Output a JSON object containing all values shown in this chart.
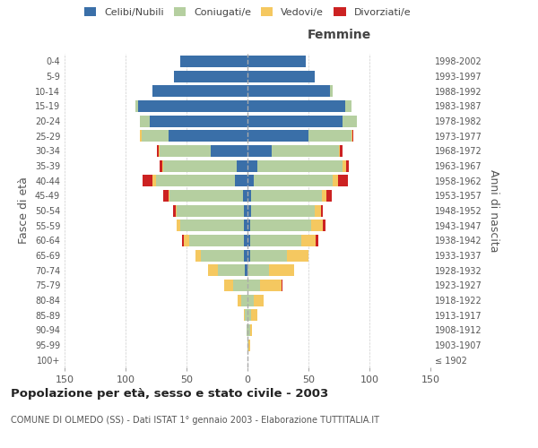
{
  "age_groups": [
    "100+",
    "95-99",
    "90-94",
    "85-89",
    "80-84",
    "75-79",
    "70-74",
    "65-69",
    "60-64",
    "55-59",
    "50-54",
    "45-49",
    "40-44",
    "35-39",
    "30-34",
    "25-29",
    "20-24",
    "15-19",
    "10-14",
    "5-9",
    "0-4"
  ],
  "birth_years": [
    "≤ 1902",
    "1903-1907",
    "1908-1912",
    "1913-1917",
    "1918-1922",
    "1923-1927",
    "1928-1932",
    "1933-1937",
    "1938-1942",
    "1943-1947",
    "1948-1952",
    "1953-1957",
    "1958-1962",
    "1963-1967",
    "1968-1972",
    "1973-1977",
    "1978-1982",
    "1983-1987",
    "1988-1992",
    "1993-1997",
    "1998-2002"
  ],
  "males": {
    "celibi": [
      0,
      0,
      0,
      0,
      0,
      0,
      2,
      3,
      3,
      3,
      3,
      4,
      10,
      9,
      30,
      65,
      80,
      90,
      78,
      60,
      55
    ],
    "coniugati": [
      0,
      0,
      1,
      2,
      5,
      12,
      22,
      35,
      45,
      52,
      55,
      60,
      65,
      60,
      42,
      22,
      8,
      2,
      0,
      0,
      0
    ],
    "vedovi": [
      0,
      0,
      0,
      1,
      3,
      7,
      8,
      5,
      4,
      3,
      1,
      1,
      3,
      1,
      1,
      1,
      0,
      0,
      0,
      0,
      0
    ],
    "divorziati": [
      0,
      0,
      0,
      0,
      0,
      0,
      0,
      0,
      2,
      0,
      2,
      4,
      8,
      2,
      1,
      0,
      0,
      0,
      0,
      0,
      0
    ]
  },
  "females": {
    "nubili": [
      0,
      0,
      0,
      0,
      0,
      0,
      0,
      2,
      2,
      2,
      3,
      3,
      5,
      8,
      20,
      50,
      78,
      80,
      68,
      55,
      48
    ],
    "coniugate": [
      0,
      1,
      2,
      3,
      5,
      10,
      18,
      30,
      42,
      50,
      52,
      58,
      65,
      70,
      55,
      35,
      12,
      5,
      2,
      0,
      0
    ],
    "vedove": [
      0,
      1,
      2,
      5,
      8,
      18,
      20,
      18,
      12,
      10,
      5,
      4,
      4,
      3,
      1,
      1,
      0,
      0,
      0,
      0,
      0
    ],
    "divorziate": [
      0,
      0,
      0,
      0,
      0,
      1,
      0,
      0,
      2,
      2,
      2,
      4,
      8,
      2,
      2,
      1,
      0,
      0,
      0,
      0,
      0
    ]
  },
  "colors": {
    "celibi": "#3a6fa8",
    "coniugati": "#b5cfa0",
    "vedovi": "#f5c860",
    "divorziati": "#cc2222"
  },
  "xlim": 150,
  "title": "Popolazione per età, sesso e stato civile - 2003",
  "subtitle": "COMUNE DI OLMEDO (SS) - Dati ISTAT 1° gennaio 2003 - Elaborazione TUTTITALIA.IT",
  "ylabel_left": "Fasce di età",
  "ylabel_right": "Anni di nascita",
  "xlabel_right": "Femmine",
  "background_color": "#ffffff",
  "grid_color": "#cccccc"
}
